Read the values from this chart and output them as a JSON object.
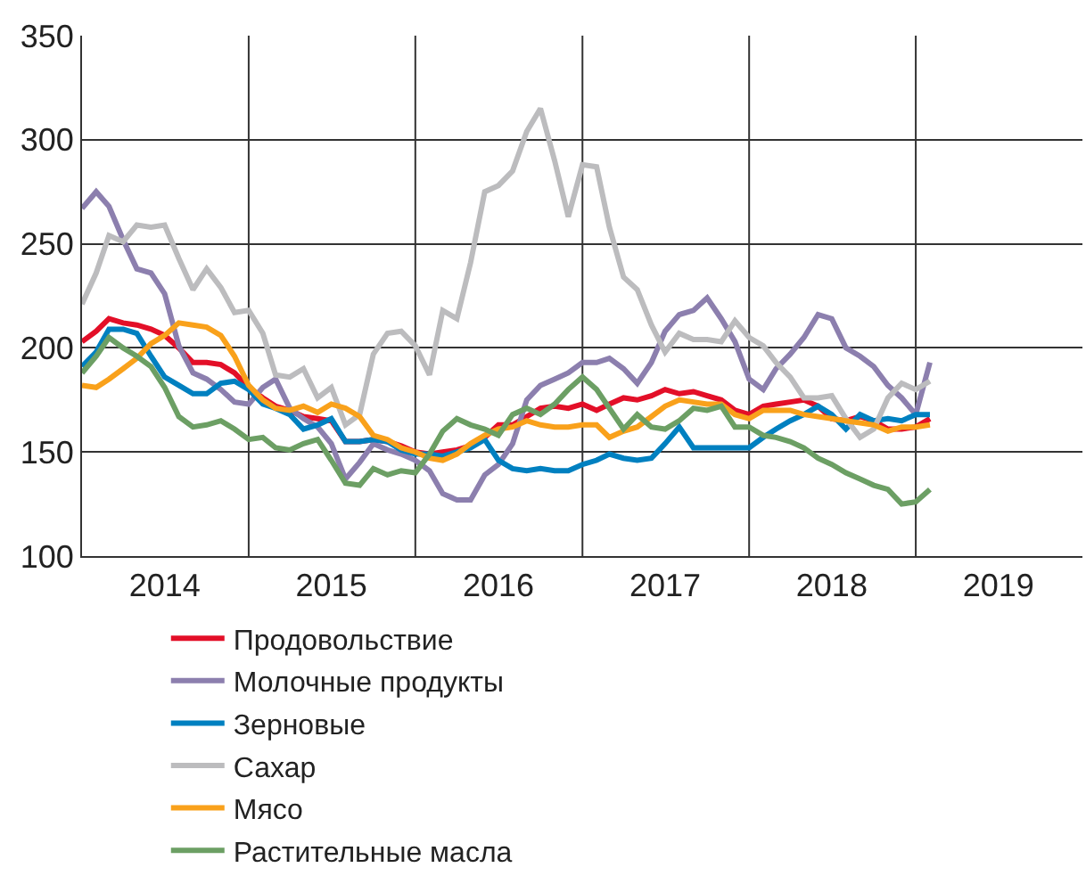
{
  "chart_data": {
    "type": "line",
    "x": [
      "2014-01",
      "2014-02",
      "2014-03",
      "2014-04",
      "2014-05",
      "2014-06",
      "2014-07",
      "2014-08",
      "2014-09",
      "2014-10",
      "2014-11",
      "2014-12",
      "2015-01",
      "2015-02",
      "2015-03",
      "2015-04",
      "2015-05",
      "2015-06",
      "2015-07",
      "2015-08",
      "2015-09",
      "2015-10",
      "2015-11",
      "2015-12",
      "2016-01",
      "2016-02",
      "2016-03",
      "2016-04",
      "2016-05",
      "2016-06",
      "2016-07",
      "2016-08",
      "2016-09",
      "2016-10",
      "2016-11",
      "2016-12",
      "2017-01",
      "2017-02",
      "2017-03",
      "2017-04",
      "2017-05",
      "2017-06",
      "2017-07",
      "2017-08",
      "2017-09",
      "2017-10",
      "2017-11",
      "2017-12",
      "2018-01",
      "2018-02",
      "2018-03",
      "2018-04",
      "2018-05",
      "2018-06",
      "2018-07",
      "2018-08",
      "2018-09",
      "2018-10",
      "2018-11",
      "2018-12",
      "2019-01",
      "2019-02"
    ],
    "series": [
      {
        "name": "Продовольствие",
        "color": "#e30f28",
        "values": [
          203,
          208,
          214,
          212,
          211,
          209,
          206,
          200,
          193,
          193,
          192,
          188,
          181,
          176,
          172,
          170,
          167,
          166,
          165,
          155,
          155,
          156,
          155,
          153,
          150,
          149,
          150,
          151,
          153,
          157,
          163,
          163,
          167,
          171,
          172,
          171,
          173,
          170,
          173,
          176,
          175,
          177,
          180,
          178,
          179,
          177,
          175,
          170,
          168,
          172,
          173,
          174,
          175,
          172,
          166,
          165,
          167,
          165,
          161,
          161,
          162,
          166
        ]
      },
      {
        "name": "Молочные продукты",
        "color": "#8c7fae",
        "values": [
          267,
          275,
          268,
          252,
          238,
          236,
          226,
          201,
          188,
          185,
          180,
          174,
          173,
          181,
          185,
          171,
          166,
          162,
          154,
          137,
          145,
          154,
          151,
          149,
          146,
          141,
          130,
          127,
          127,
          139,
          144,
          154,
          175,
          182,
          185,
          188,
          193,
          193,
          195,
          190,
          183,
          193,
          208,
          216,
          218,
          224,
          214,
          203,
          185,
          180,
          190,
          197,
          205,
          216,
          214,
          200,
          196,
          191,
          182,
          176,
          168,
          193
        ]
      },
      {
        "name": "Зерновые",
        "color": "#0080c0",
        "values": [
          191,
          198,
          209,
          209,
          207,
          196,
          186,
          182,
          178,
          178,
          183,
          184,
          180,
          173,
          171,
          168,
          161,
          163,
          166,
          155,
          155,
          156,
          155,
          151,
          149,
          149,
          148,
          150,
          152,
          156,
          146,
          142,
          141,
          142,
          141,
          141,
          144,
          146,
          149,
          147,
          146,
          147,
          154,
          162,
          152,
          152,
          152,
          152,
          152,
          157,
          161,
          165,
          168,
          172,
          168,
          161,
          168,
          165,
          166,
          165,
          168,
          168
        ]
      },
      {
        "name": "Сахар",
        "color": "#bcbcbe",
        "values": [
          221,
          236,
          254,
          251,
          259,
          258,
          259,
          243,
          228,
          238,
          229,
          217,
          218,
          207,
          187,
          186,
          190,
          176,
          181,
          163,
          168,
          197,
          207,
          208,
          201,
          187,
          218,
          214,
          241,
          275,
          278,
          285,
          304,
          315,
          290,
          263,
          288,
          287,
          258,
          234,
          228,
          211,
          198,
          207,
          204,
          204,
          203,
          213,
          205,
          201,
          193,
          186,
          176,
          176,
          177,
          166,
          157,
          161,
          176,
          183,
          180,
          184
        ]
      },
      {
        "name": "Мясо",
        "color": "#f9a11b",
        "values": [
          182,
          181,
          185,
          190,
          195,
          202,
          206,
          212,
          211,
          210,
          206,
          196,
          182,
          175,
          171,
          170,
          172,
          169,
          173,
          171,
          167,
          158,
          156,
          152,
          150,
          147,
          146,
          149,
          154,
          158,
          161,
          162,
          165,
          163,
          162,
          162,
          163,
          163,
          157,
          160,
          162,
          167,
          172,
          175,
          174,
          173,
          173,
          168,
          166,
          170,
          170,
          170,
          168,
          167,
          166,
          165,
          164,
          163,
          160,
          162,
          162,
          163
        ]
      },
      {
        "name": "Растительные масла",
        "color": "#6c9f64",
        "values": [
          188,
          196,
          205,
          200,
          196,
          191,
          181,
          167,
          162,
          163,
          165,
          161,
          156,
          157,
          152,
          151,
          154,
          156,
          146,
          135,
          134,
          142,
          139,
          141,
          140,
          149,
          160,
          166,
          163,
          161,
          158,
          168,
          171,
          168,
          173,
          180,
          186,
          180,
          171,
          161,
          168,
          162,
          161,
          165,
          171,
          170,
          172,
          162,
          162,
          158,
          157,
          155,
          152,
          147,
          144,
          140,
          137,
          134,
          132,
          125,
          126,
          132
        ]
      }
    ],
    "xlim": [
      "2014-01-01",
      "2020-01-01"
    ],
    "xticks": [
      {
        "value": "2014-07-01",
        "label": "2014"
      },
      {
        "value": "2015-01-01",
        "label": null
      },
      {
        "value": "2015-07-01",
        "label": "2015"
      },
      {
        "value": "2016-01-01",
        "label": null
      },
      {
        "value": "2016-07-01",
        "label": "2016"
      },
      {
        "value": "2017-01-01",
        "label": null
      },
      {
        "value": "2017-07-01",
        "label": "2017"
      },
      {
        "value": "2018-01-01",
        "label": null
      },
      {
        "value": "2018-07-01",
        "label": "2018"
      },
      {
        "value": "2019-01-01",
        "label": null
      },
      {
        "value": "2019-07-01",
        "label": "2019"
      }
    ],
    "ylim": [
      100,
      350
    ],
    "yticks": [
      100,
      150,
      200,
      250,
      300,
      350
    ],
    "grid": true,
    "legend": "bottom",
    "marker": "none",
    "line_style": "solid"
  }
}
